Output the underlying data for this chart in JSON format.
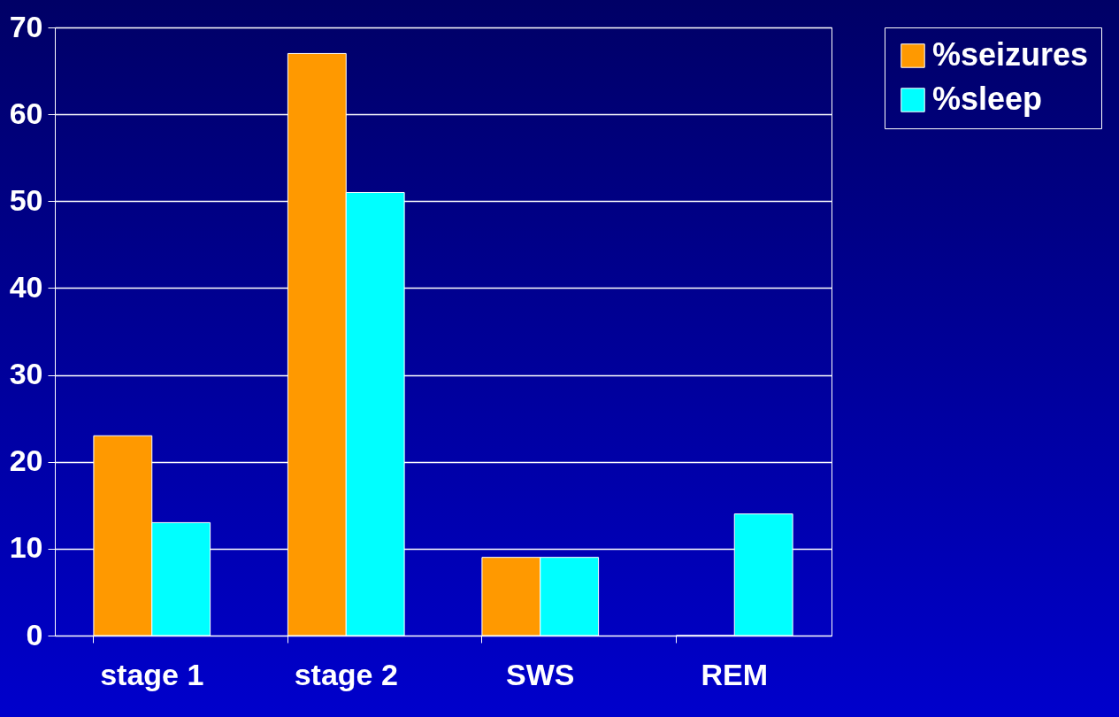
{
  "chart_data": {
    "type": "bar",
    "categories": [
      "stage 1",
      "stage 2",
      "SWS",
      "REM"
    ],
    "series": [
      {
        "name": "%seizures",
        "color": "#ff9900",
        "values": [
          23,
          67,
          9,
          0
        ]
      },
      {
        "name": "%sleep",
        "color": "#00ffff",
        "values": [
          13,
          51,
          9,
          14
        ]
      }
    ],
    "ylim": [
      0,
      70
    ],
    "yticks": [
      0,
      10,
      20,
      30,
      40,
      50,
      60,
      70
    ],
    "grid": "y",
    "legend": "right"
  }
}
